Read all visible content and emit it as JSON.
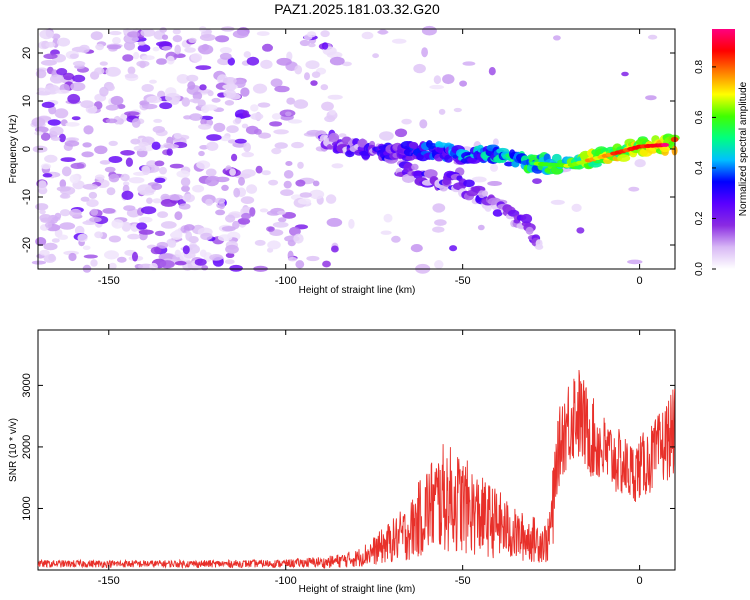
{
  "title": "PAZ1.2025.181.03.32.G20",
  "chart_data": [
    {
      "type": "heatmap",
      "title": "PAZ1.2025.181.03.32.G20",
      "xlabel": "Height of straight line (km)",
      "ylabel": "Frequency (Hz)",
      "xlim": [
        -170,
        10
      ],
      "ylim": [
        -25,
        25
      ],
      "x_ticks": [
        -150,
        -100,
        -50,
        0
      ],
      "y_ticks": [
        -20,
        -10,
        0,
        10,
        20
      ],
      "colorbar": {
        "label": "Normalized spectral amplitude",
        "range": [
          0,
          0.95
        ],
        "ticks": [
          "0.0",
          "0.2",
          "0.4",
          "0.6",
          "0.8"
        ],
        "tick_values": [
          0,
          0.2,
          0.4,
          0.6,
          0.8
        ],
        "colors": [
          "#ffffff",
          "#d8b8f5",
          "#8a2be2",
          "#5a00ff",
          "#0000ff",
          "#00c0ff",
          "#00ff80",
          "#40ff00",
          "#ffff00",
          "#ff8000",
          "#ff0000",
          "#ff0080"
        ]
      },
      "ridges": [
        {
          "name": "main",
          "points": [
            [
              -90,
              1.5
            ],
            [
              -80,
              0
            ],
            [
              -70,
              -1
            ],
            [
              -60,
              0
            ],
            [
              -50,
              -1
            ],
            [
              -40,
              -1
            ],
            [
              -30,
              -3
            ],
            [
              -20,
              -3.5
            ],
            [
              -10,
              -1.5
            ],
            [
              0,
              0.5
            ],
            [
              10,
              1
            ]
          ]
        },
        {
          "name": "branch",
          "points": [
            [
              -68,
              -4
            ],
            [
              -60,
              -6
            ],
            [
              -52,
              -7
            ],
            [
              -45,
              -10
            ],
            [
              -38,
              -13
            ],
            [
              -32,
              -16
            ],
            [
              -28,
              -20
            ]
          ]
        }
      ]
    },
    {
      "type": "line",
      "xlabel": "Height of straight line (km)",
      "ylabel": "SNR (10 * v/v)",
      "xlim": [
        -170,
        10
      ],
      "ylim": [
        0,
        3900
      ],
      "x_ticks": [
        -150,
        -100,
        -50,
        0
      ],
      "y_ticks": [
        1000,
        2000,
        3000
      ],
      "color": "#e8302a",
      "envelope": [
        [
          -170,
          120
        ],
        [
          -150,
          120
        ],
        [
          -120,
          120
        ],
        [
          -100,
          130
        ],
        [
          -90,
          180
        ],
        [
          -80,
          300
        ],
        [
          -75,
          500
        ],
        [
          -65,
          1000
        ],
        [
          -60,
          1600
        ],
        [
          -55,
          1900
        ],
        [
          -50,
          1700
        ],
        [
          -45,
          1400
        ],
        [
          -40,
          1200
        ],
        [
          -35,
          900
        ],
        [
          -30,
          800
        ],
        [
          -26,
          700
        ],
        [
          -24,
          1800
        ],
        [
          -22,
          2500
        ],
        [
          -18,
          3000
        ],
        [
          -14,
          2500
        ],
        [
          -10,
          2200
        ],
        [
          -6,
          2000
        ],
        [
          -2,
          1800
        ],
        [
          4,
          2100
        ],
        [
          10,
          2600
        ]
      ]
    }
  ]
}
